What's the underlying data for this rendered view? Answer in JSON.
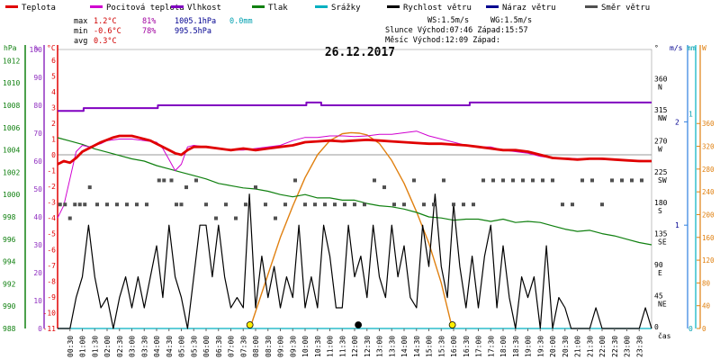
{
  "chart_data": {
    "type": "line",
    "title": "26.12.2017",
    "legend": {
      "placement": "top",
      "items": [
        {
          "label": "Teplota",
          "color": "#e00000"
        },
        {
          "label": "Pocitová teplota",
          "color": "#d000d0"
        },
        {
          "label": "Vlhkost",
          "color": "#8000c0"
        },
        {
          "label": "Tlak",
          "color": "#108010"
        },
        {
          "label": "Srážky",
          "color": "#00b0c0"
        },
        {
          "label": "Rychlost větru",
          "color": "#000000"
        },
        {
          "label": "Náraz větru",
          "color": "#000090"
        },
        {
          "label": "Směr větru",
          "color": "#505050"
        }
      ]
    },
    "stats": {
      "max": {
        "label": "max",
        "temp": "1.2°C",
        "hum": "81%",
        "press": "1005.1hPa",
        "rain": "0.0mm"
      },
      "min": {
        "label": "min",
        "temp": "-0.6°C",
        "hum": "78%",
        "press": "995.5hPa"
      },
      "avg": {
        "label": "avg",
        "temp": "0.3°C"
      }
    },
    "info": {
      "ws": "WS:1.5m/s",
      "wg": "WG:1.5m/s",
      "sun": "Slunce Východ:07:46  Západ:15:57",
      "moon": "Měsíc  Východ:12:09  Západ:"
    },
    "axes": {
      "hpa": {
        "label": "hPa",
        "ticks": [
          1012,
          1010,
          1008,
          1006,
          1004,
          1002,
          1000,
          998,
          996,
          994,
          992,
          990,
          988
        ],
        "range": [
          988,
          1013
        ]
      },
      "pct": {
        "label": "%",
        "ticks": [
          100,
          90,
          80,
          70,
          60,
          50,
          40,
          30,
          20,
          10,
          0
        ],
        "range": [
          0,
          100
        ]
      },
      "temp": {
        "label": "°C",
        "ticks": [
          6,
          5,
          4,
          3,
          2,
          1,
          0,
          -1,
          -2,
          -3,
          -4,
          -5,
          -6,
          -7,
          -8,
          -9,
          -10,
          -11
        ],
        "range": [
          -11,
          6.67
        ]
      },
      "dir": {
        "label": "°",
        "ticks": [
          {
            "v": 360,
            "c": "N"
          },
          {
            "v": 315,
            "c": "NW"
          },
          {
            "v": 270,
            "c": "W"
          },
          {
            "v": 225,
            "c": "SW"
          },
          {
            "v": 180,
            "c": "S"
          },
          {
            "v": 135,
            "c": "SE"
          },
          {
            "v": 90,
            "c": "E"
          },
          {
            "v": 45,
            "c": "NE"
          },
          {
            "v": 0,
            "c": ""
          }
        ],
        "range": [
          0,
          405
        ]
      },
      "ms": {
        "label": "m/s",
        "ticks": [
          1,
          2
        ],
        "range": [
          0,
          2.7
        ]
      },
      "mm": {
        "label": "mm",
        "ticks": [
          0,
          1
        ],
        "range": [
          0,
          1.3
        ]
      },
      "wm2": {
        "label": "W",
        "ticks": [
          360,
          320,
          280,
          240,
          200,
          160,
          120,
          80,
          40,
          0
        ],
        "range": [
          0,
          490
        ]
      },
      "x": {
        "label": "čas",
        "ticks": [
          "00:30",
          "01:00",
          "01:30",
          "02:00",
          "02:30",
          "03:00",
          "03:30",
          "04:00",
          "04:30",
          "05:00",
          "05:30",
          "06:00",
          "06:30",
          "07:00",
          "07:30",
          "08:00",
          "08:30",
          "09:00",
          "09:30",
          "10:00",
          "10:30",
          "11:00",
          "11:30",
          "12:00",
          "12:30",
          "13:00",
          "13:30",
          "14:00",
          "14:30",
          "15:00",
          "15:30",
          "16:00",
          "16:30",
          "17:00",
          "17:30",
          "18:00",
          "18:30",
          "19:00",
          "19:30",
          "20:00",
          "20:30",
          "21:00",
          "21:30",
          "22:00",
          "22:30",
          "23:00",
          "23:30"
        ],
        "range_h": [
          0,
          24
        ]
      }
    },
    "series": [
      {
        "name": "Teplota",
        "axis": "temp",
        "color": "#e00000",
        "t": [
          0,
          0.25,
          0.5,
          0.75,
          1,
          1.25,
          1.5,
          1.75,
          2,
          2.25,
          2.5,
          2.75,
          3,
          3.25,
          3.5,
          3.75,
          4,
          4.25,
          4.5,
          4.75,
          5,
          5.25,
          5.5,
          6,
          6.5,
          7,
          7.5,
          8,
          8.5,
          9,
          9.5,
          10,
          10.5,
          11,
          11.5,
          12,
          12.5,
          13,
          13.5,
          14,
          14.5,
          15,
          15.5,
          16,
          16.5,
          17,
          17.5,
          18,
          18.5,
          19,
          19.5,
          20,
          20.5,
          21,
          21.5,
          22,
          22.5,
          23,
          23.5,
          24
        ],
        "v": [
          -0.6,
          -0.4,
          -0.5,
          -0.2,
          0.2,
          0.4,
          0.6,
          0.8,
          0.95,
          1.1,
          1.2,
          1.2,
          1.2,
          1.1,
          1.0,
          0.9,
          0.7,
          0.5,
          0.3,
          0.1,
          0.0,
          0.3,
          0.5,
          0.5,
          0.4,
          0.3,
          0.4,
          0.3,
          0.4,
          0.5,
          0.6,
          0.8,
          0.85,
          0.9,
          0.85,
          0.9,
          0.95,
          0.9,
          0.85,
          0.8,
          0.75,
          0.7,
          0.7,
          0.65,
          0.6,
          0.5,
          0.4,
          0.3,
          0.3,
          0.2,
          0.0,
          -0.2,
          -0.25,
          -0.3,
          -0.25,
          -0.25,
          -0.3,
          -0.35,
          -0.4,
          -0.4
        ]
      },
      {
        "name": "Pocitová teplota",
        "axis": "temp",
        "color": "#d000d0",
        "t": [
          0,
          0.25,
          0.5,
          0.75,
          1,
          1.25,
          1.5,
          1.75,
          2,
          2.5,
          3,
          3.5,
          4,
          4.25,
          4.5,
          4.75,
          5,
          5.25,
          5.5,
          6,
          6.5,
          7,
          7.5,
          8,
          8.5,
          9,
          9.5,
          10,
          10.5,
          11,
          11.5,
          12,
          12.5,
          13,
          13.5,
          14,
          14.5,
          15,
          15.5,
          16,
          16.5,
          17,
          17.5,
          18,
          18.5,
          19,
          19.5,
          20,
          20.5,
          21,
          21.5,
          22,
          22.5,
          23,
          23.5,
          24
        ],
        "v": [
          -4.0,
          -3.2,
          -1.5,
          0.2,
          0.6,
          0.5,
          0.6,
          0.7,
          0.9,
          1.0,
          1.0,
          0.9,
          0.8,
          0.4,
          -0.3,
          -1.0,
          -0.6,
          0.5,
          0.6,
          0.5,
          0.4,
          0.3,
          0.3,
          0.4,
          0.5,
          0.6,
          0.9,
          1.1,
          1.1,
          1.2,
          1.2,
          1.15,
          1.2,
          1.3,
          1.3,
          1.4,
          1.5,
          1.2,
          1.0,
          0.8,
          0.6,
          0.5,
          0.5,
          0.3,
          0.2,
          0.1,
          -0.1,
          -0.2,
          -0.2,
          -0.25,
          -0.25,
          -0.3,
          -0.3,
          -0.35,
          -0.35,
          -0.4
        ]
      },
      {
        "name": "Vlhkost",
        "axis": "pct",
        "color": "#8000c0",
        "t": [
          0,
          1,
          1.05,
          4,
          4.05,
          10,
          10.05,
          10.6,
          10.65,
          15,
          15.05,
          16.6,
          16.65,
          24
        ],
        "v": [
          78,
          78,
          79,
          79,
          80,
          80,
          81,
          81,
          80,
          80,
          80,
          80,
          81,
          81
        ]
      },
      {
        "name": "Tlak",
        "axis": "hpa",
        "color": "#108010",
        "t": [
          0,
          0.5,
          1,
          1.5,
          2,
          2.5,
          3,
          3.5,
          4,
          4.5,
          5,
          5.5,
          6,
          6.5,
          7,
          7.5,
          8,
          8.5,
          9,
          9.5,
          10,
          10.5,
          11,
          11.5,
          12,
          12.5,
          13,
          13.5,
          14,
          14.5,
          15,
          15.5,
          16,
          16.5,
          17,
          17.5,
          18,
          18.5,
          19,
          19.5,
          20,
          20.5,
          21,
          21.5,
          22,
          22.5,
          23,
          23.5,
          24
        ],
        "v": [
          1005.1,
          1004.8,
          1004.5,
          1004.1,
          1003.8,
          1003.5,
          1003.2,
          1003.0,
          1002.6,
          1002.3,
          1002.0,
          1001.7,
          1001.4,
          1001.0,
          1000.8,
          1000.6,
          1000.5,
          1000.3,
          1000.0,
          999.8,
          1000.0,
          999.7,
          999.7,
          999.5,
          999.5,
          999.2,
          999.0,
          998.9,
          998.7,
          998.4,
          998.0,
          997.9,
          997.7,
          997.8,
          997.8,
          997.6,
          997.8,
          997.5,
          997.6,
          997.5,
          997.2,
          996.9,
          996.7,
          996.8,
          996.5,
          996.3,
          996.0,
          995.7,
          995.5
        ]
      },
      {
        "name": "Srážky",
        "axis": "mm",
        "color": "#00b0c0",
        "t": [
          0,
          24
        ],
        "v": [
          0,
          0
        ]
      },
      {
        "name": "Rychlost větru",
        "axis": "ms",
        "color": "#000000",
        "t": [
          0,
          0.5,
          0.75,
          1,
          1.25,
          1.5,
          1.75,
          2,
          2.25,
          2.5,
          2.75,
          3,
          3.25,
          3.5,
          3.75,
          4,
          4.25,
          4.5,
          4.75,
          5,
          5.25,
          5.5,
          5.75,
          6,
          6.25,
          6.5,
          6.75,
          7,
          7.25,
          7.5,
          7.75,
          8,
          8.25,
          8.5,
          8.75,
          9,
          9.25,
          9.5,
          9.75,
          10,
          10.25,
          10.5,
          10.75,
          11,
          11.25,
          11.5,
          11.75,
          12,
          12.25,
          12.5,
          12.75,
          13,
          13.25,
          13.5,
          13.75,
          14,
          14.25,
          14.5,
          14.75,
          15,
          15.25,
          15.5,
          15.75,
          16,
          16.25,
          16.5,
          16.75,
          17,
          17.25,
          17.5,
          17.75,
          18,
          18.25,
          18.5,
          18.75,
          19,
          19.25,
          19.5,
          19.75,
          20,
          20.25,
          20.5,
          20.75,
          21,
          21.25,
          21.5,
          21.75,
          22,
          22.25,
          22.5,
          22.75,
          23,
          23.25,
          23.5,
          23.75,
          24
        ],
        "v": [
          0,
          0,
          0.3,
          0.5,
          1.0,
          0.5,
          0.2,
          0.3,
          0,
          0.3,
          0.5,
          0.2,
          0.5,
          0.2,
          0.5,
          0.8,
          0.3,
          1.0,
          0.5,
          0.3,
          0,
          0.5,
          1.0,
          1.0,
          0.5,
          1.0,
          0.5,
          0.2,
          0.3,
          0.2,
          1.3,
          0.2,
          0.7,
          0.3,
          0.6,
          0.2,
          0.5,
          0.3,
          1.0,
          0.2,
          0.5,
          0.2,
          1.0,
          0.7,
          0.2,
          0.2,
          1.0,
          0.5,
          0.7,
          0.3,
          1.0,
          0.5,
          0.3,
          1.0,
          0.5,
          0.8,
          0.3,
          0.2,
          1.0,
          0.6,
          1.3,
          0.6,
          0.3,
          1.2,
          0.6,
          0.2,
          0.7,
          0.2,
          0.7,
          1.0,
          0.2,
          0.8,
          0.3,
          0,
          0.5,
          0.3,
          0.5,
          0,
          0.8,
          0,
          0.3,
          0.2,
          0,
          0,
          0,
          0,
          0.2,
          0,
          0,
          0,
          0,
          0,
          0,
          0,
          0.2,
          0,
          0
        ]
      },
      {
        "name": "Sluneční svit",
        "axis": "wm2",
        "color": "#e08010",
        "t": [
          7.77,
          8.5,
          9,
          9.5,
          10,
          10.5,
          11,
          11.5,
          11.86,
          12.2,
          12.5,
          13,
          13.5,
          14,
          14.5,
          15,
          15.5,
          15.95
        ],
        "v": [
          0,
          95,
          160,
          215,
          265,
          305,
          330,
          342,
          344,
          343,
          340,
          325,
          295,
          255,
          205,
          150,
          80,
          0
        ]
      }
    ],
    "wind_direction": {
      "axis": "dir",
      "color": "#505050",
      "t": [
        0.1,
        0.3,
        0.5,
        0.7,
        0.9,
        1.1,
        1.3,
        1.6,
        2.0,
        2.4,
        2.8,
        3.2,
        3.6,
        4.1,
        4.3,
        4.6,
        4.8,
        5.0,
        5.2,
        5.6,
        6.0,
        6.4,
        6.8,
        7.2,
        7.6,
        8.0,
        8.4,
        8.8,
        9.2,
        9.6,
        10.0,
        10.4,
        10.8,
        11.2,
        11.6,
        12.0,
        12.4,
        12.8,
        13.2,
        13.6,
        14.0,
        14.4,
        14.8,
        15.2,
        15.6,
        16.0,
        16.4,
        16.8,
        17.2,
        17.6,
        18.0,
        18.4,
        18.8,
        19.2,
        19.6,
        20.0,
        20.4,
        20.8,
        21.2,
        21.6,
        22.0,
        22.4,
        22.8,
        23.2,
        23.6
      ],
      "v": [
        180,
        180,
        160,
        180,
        180,
        180,
        205,
        180,
        180,
        180,
        180,
        180,
        180,
        215,
        215,
        215,
        180,
        180,
        205,
        215,
        180,
        160,
        180,
        160,
        180,
        205,
        180,
        160,
        180,
        215,
        180,
        180,
        180,
        180,
        180,
        180,
        180,
        215,
        205,
        180,
        180,
        215,
        180,
        180,
        215,
        180,
        180,
        180,
        215,
        215,
        215,
        215,
        215,
        215,
        215,
        215,
        180,
        180,
        215,
        215,
        180,
        215,
        215,
        215,
        215
      ]
    },
    "markers": {
      "sunrise": {
        "time": "07:46",
        "t": 7.77,
        "axis": "wm2",
        "v": 0,
        "color": "#ffee00"
      },
      "sunset": {
        "time": "15:57",
        "t": 15.95,
        "axis": "wm2",
        "v": 0,
        "color": "#ffee00"
      },
      "moonrise": {
        "time": "12:09",
        "t": 12.15,
        "axis": "wm2",
        "v": 0,
        "color": "#000000"
      }
    }
  }
}
